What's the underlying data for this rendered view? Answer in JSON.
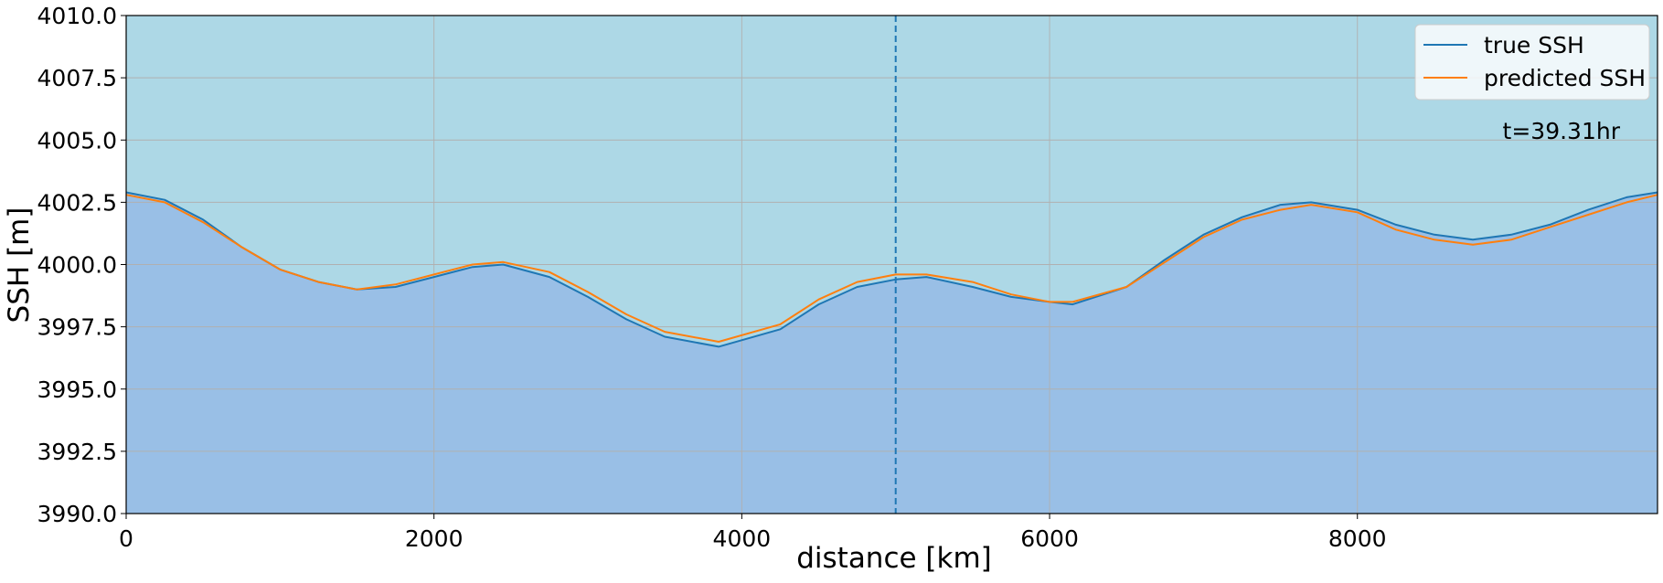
{
  "chart_data": {
    "type": "area",
    "xlabel": "distance [km]",
    "ylabel": "SSH [m]",
    "xlim": [
      0,
      9950
    ],
    "ylim": [
      3990.0,
      4010.0
    ],
    "xticks": [
      0,
      2000,
      4000,
      6000,
      8000
    ],
    "yticks": [
      3990.0,
      3992.5,
      3995.0,
      3997.5,
      4000.0,
      4002.5,
      4005.0,
      4007.5,
      4010.0
    ],
    "xtick_labels": [
      "0",
      "2000",
      "4000",
      "6000",
      "8000"
    ],
    "ytick_labels": [
      "3990.0",
      "3992.5",
      "3995.0",
      "3997.5",
      "4000.0",
      "4002.5",
      "4005.0",
      "4007.5",
      "4010.0"
    ],
    "grid": true,
    "legend_position": "top-right",
    "annotation": "t=39.31hr",
    "vertical_marker_x": 5000,
    "colors": {
      "sky": "#add8e6",
      "water": "#99bfe6",
      "true_ssh": "#1f77b4",
      "predicted_ssh": "#ff7f0e",
      "grid": "#b0b0b0"
    },
    "series": [
      {
        "name": "true SSH",
        "x": [
          0,
          250,
          500,
          750,
          1000,
          1250,
          1500,
          1750,
          2000,
          2250,
          2450,
          2750,
          3000,
          3250,
          3500,
          3850,
          4250,
          4500,
          4750,
          5000,
          5200,
          5500,
          5750,
          6000,
          6150,
          6500,
          6750,
          7000,
          7250,
          7500,
          7700,
          8000,
          8250,
          8500,
          8750,
          9000,
          9250,
          9500,
          9750,
          9950
        ],
        "values": [
          4002.9,
          4002.6,
          4001.8,
          4000.7,
          3999.8,
          3999.3,
          3999.0,
          3999.1,
          3999.5,
          3999.9,
          4000.0,
          3999.5,
          3998.7,
          3997.8,
          3997.1,
          3996.7,
          3997.4,
          3998.4,
          3999.1,
          3999.4,
          3999.5,
          3999.1,
          3998.7,
          3998.5,
          3998.4,
          3999.1,
          4000.2,
          4001.2,
          4001.9,
          4002.4,
          4002.5,
          4002.2,
          4001.6,
          4001.2,
          4001.0,
          4001.2,
          4001.6,
          4002.2,
          4002.7,
          4002.9
        ]
      },
      {
        "name": "predicted SSH",
        "x": [
          0,
          250,
          500,
          750,
          1000,
          1250,
          1500,
          1750,
          2000,
          2250,
          2450,
          2750,
          3000,
          3250,
          3500,
          3850,
          4250,
          4500,
          4750,
          5000,
          5200,
          5500,
          5750,
          6000,
          6150,
          6500,
          6750,
          7000,
          7250,
          7500,
          7700,
          8000,
          8250,
          8500,
          8750,
          9000,
          9250,
          9500,
          9750,
          9950
        ],
        "values": [
          4002.8,
          4002.5,
          4001.7,
          4000.7,
          3999.8,
          3999.3,
          3999.0,
          3999.2,
          3999.6,
          4000.0,
          4000.1,
          3999.7,
          3998.9,
          3998.0,
          3997.3,
          3996.9,
          3997.6,
          3998.6,
          3999.3,
          3999.6,
          3999.6,
          3999.3,
          3998.8,
          3998.5,
          3998.5,
          3999.1,
          4000.1,
          4001.1,
          4001.8,
          4002.2,
          4002.4,
          4002.1,
          4001.4,
          4001.0,
          4000.8,
          4001.0,
          4001.5,
          4002.0,
          4002.5,
          4002.8
        ]
      }
    ]
  }
}
